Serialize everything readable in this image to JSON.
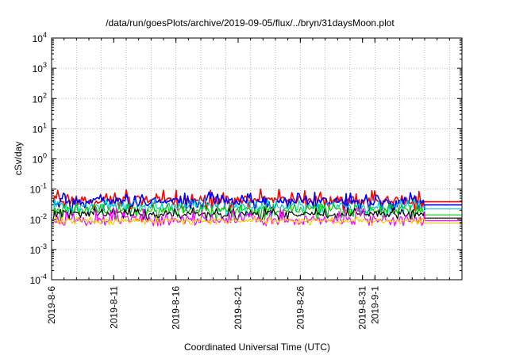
{
  "chart_data": {
    "type": "line",
    "title": "/data/run/goesPlots/archive/2019-09-05/flux/../bryn/31daysMoon.plot",
    "xlabel": "Coordinated Universal Time (UTC)",
    "ylabel": "cSv/day",
    "y_scale": "log",
    "ylim": [
      0.0001,
      10000
    ],
    "y_ticks": [
      {
        "value": 0.0001,
        "base": "10",
        "exp": "-4"
      },
      {
        "value": 0.001,
        "base": "10",
        "exp": "-3"
      },
      {
        "value": 0.01,
        "base": "10",
        "exp": "-2"
      },
      {
        "value": 0.1,
        "base": "10",
        "exp": "-1"
      },
      {
        "value": 1,
        "base": "10",
        "exp": "0"
      },
      {
        "value": 10,
        "base": "10",
        "exp": "1"
      },
      {
        "value": 100,
        "base": "10",
        "exp": "2"
      },
      {
        "value": 1000,
        "base": "10",
        "exp": "3"
      },
      {
        "value": 10000,
        "base": "10",
        "exp": "4"
      }
    ],
    "xlim": [
      "2019-08-06",
      "2019-09-08"
    ],
    "x_ticks": [
      "2019-8-6",
      "2019-8-11",
      "2019-8-16",
      "2019-8-21",
      "2019-8-26",
      "2019-8-31",
      "2019-9-1"
    ],
    "x_tick_dates": [
      "2019-08-06",
      "2019-08-11",
      "2019-08-16",
      "2019-08-21",
      "2019-08-26",
      "2019-08-31",
      "2019-09-01"
    ],
    "data_end": "2019-09-05",
    "grid": true,
    "series": [
      {
        "color": "#ff0000",
        "baseline": 0.045,
        "peak": 0.1,
        "trough": 0.02,
        "end_value": 0.038
      },
      {
        "color": "#0000ff",
        "baseline": 0.04,
        "peak": 0.085,
        "trough": 0.018,
        "end_value": 0.03
      },
      {
        "color": "#00cccc",
        "baseline": 0.028,
        "peak": 0.05,
        "trough": 0.012,
        "end_value": 0.022
      },
      {
        "color": "#00cc00",
        "baseline": 0.02,
        "peak": 0.035,
        "trough": 0.009,
        "end_value": 0.014
      },
      {
        "color": "#000000",
        "baseline": 0.015,
        "peak": 0.025,
        "trough": 0.009,
        "end_value": 0.011
      },
      {
        "color": "#ff00ff",
        "baseline": 0.01,
        "peak": 0.025,
        "trough": 0.006,
        "end_value": 0.009
      },
      {
        "color": "#ffcc00",
        "baseline": 0.009,
        "peak": 0.012,
        "trough": 0.0065,
        "end_value": 0.0075
      }
    ]
  }
}
